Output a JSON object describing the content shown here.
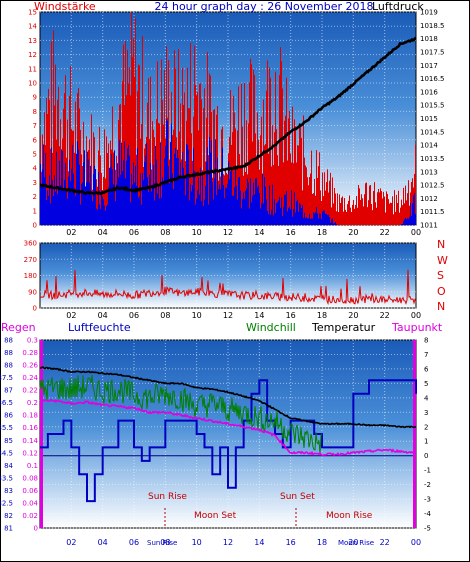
{
  "title": "24 hour graph day : 26 November 2018",
  "colors": {
    "windspeed": "#e00000",
    "wind_gust_bars": "#0000e0",
    "pressure": "#000000",
    "winddir": "#e00000",
    "rain": "#0000e0",
    "humidity": "#0000c0",
    "windchill": "#008000",
    "temperature": "#000000",
    "dewpoint": "#e000e0",
    "events": "#c00000"
  },
  "panel1": {
    "left_label": "Windstärke",
    "right_label": "Luftdruck",
    "left_ticks": [
      "0",
      "1",
      "2",
      "3",
      "4",
      "5",
      "6",
      "7",
      "8",
      "9",
      "10",
      "11",
      "12",
      "13",
      "14",
      "15"
    ],
    "right_ticks": [
      "1011",
      "1011.5",
      "1012",
      "1012.5",
      "1013",
      "1013.5",
      "1014",
      "1014.5",
      "1015",
      "1015.5",
      "1016",
      "1016.5",
      "1017",
      "1017.5",
      "1018",
      "1018.5",
      "1019"
    ],
    "x_ticks": [
      "02",
      "04",
      "06",
      "08",
      "10",
      "12",
      "14",
      "16",
      "18",
      "20",
      "22",
      "00"
    ]
  },
  "panel2": {
    "left_ticks": [
      "0",
      "90",
      "180",
      "270",
      "360"
    ],
    "compass": [
      "N",
      "W",
      "S",
      "O",
      "N"
    ],
    "x_ticks": [
      "02",
      "04",
      "06",
      "08",
      "10",
      "12",
      "14",
      "16",
      "18",
      "20",
      "22",
      "00"
    ]
  },
  "panel3": {
    "labels": {
      "rain": "Regen",
      "humidity": "Luftfeuchte",
      "windchill": "Windchill",
      "temperature": "Temperatur",
      "dewpoint": "Taupunkt"
    },
    "humidity_ticks": [
      "81",
      "82",
      "82.5",
      "83",
      "83.5",
      "84",
      "84.5",
      "85",
      "85.5",
      "86",
      "86.5",
      "87",
      "87.5",
      "88"
    ],
    "rain_ticks": [
      "0",
      "0.02",
      "0.04",
      "0.06",
      "0.08",
      "0.1",
      "0.12",
      "0.14",
      "0.16",
      "0.18",
      "0.2",
      "0.22",
      "0.24",
      "0.26",
      "0.28",
      "0.3"
    ],
    "temp_ticks": [
      "-5",
      "-4",
      "-3",
      "-2",
      "-1",
      "0",
      "1",
      "2",
      "3",
      "4",
      "5",
      "6",
      "7",
      "8"
    ],
    "x_ticks": [
      "02",
      "04",
      "06",
      "08",
      "10",
      "12",
      "14",
      "16",
      "18",
      "20",
      "22",
      "00"
    ],
    "events": {
      "sun_rise": "Sun Rise",
      "sun_set": "Sun Set",
      "moon_set": "Moon Set",
      "moon_rise": "Moon Rise"
    },
    "bottom_overlays": [
      "Sun Rise",
      "Sun Set",
      "Moon Rise"
    ]
  },
  "chart_data": [
    {
      "type": "bar",
      "panel": "wind_pressure",
      "title": "24 hour graph day : 26 November 2018",
      "xlabel": "",
      "ylabel": "Windstärke",
      "y2label": "Luftdruck",
      "ylim": [
        0,
        15
      ],
      "y2lim": [
        1011,
        1019
      ],
      "x_range_hours": [
        0,
        24
      ],
      "grid": true,
      "series": [
        {
          "name": "Windstärke",
          "kind": "bar",
          "description_points": [
            [
              0,
              8
            ],
            [
              1,
              12
            ],
            [
              2,
              9
            ],
            [
              3,
              7
            ],
            [
              4,
              6
            ],
            [
              5,
              10
            ],
            [
              6,
              13
            ],
            [
              7,
              9
            ],
            [
              8,
              11
            ],
            [
              9,
              10
            ],
            [
              10,
              12
            ],
            [
              11,
              9
            ],
            [
              12,
              8
            ],
            [
              13,
              10
            ],
            [
              14,
              9
            ],
            [
              15,
              12
            ],
            [
              16,
              7
            ],
            [
              17,
              6
            ],
            [
              18,
              4
            ],
            [
              19,
              2
            ],
            [
              20,
              2
            ],
            [
              21,
              3
            ],
            [
              22,
              2
            ],
            [
              23,
              2
            ],
            [
              24,
              5
            ]
          ]
        },
        {
          "name": "Windstärke (blue)",
          "kind": "bar",
          "description_points": [
            [
              0,
              5
            ],
            [
              1,
              4
            ],
            [
              2,
              5
            ],
            [
              3,
              4
            ],
            [
              4,
              3
            ],
            [
              5,
              5
            ],
            [
              6,
              4
            ],
            [
              7,
              5
            ],
            [
              8,
              6
            ],
            [
              9,
              5
            ],
            [
              10,
              4
            ],
            [
              11,
              5
            ],
            [
              12,
              4
            ],
            [
              13,
              3
            ],
            [
              14,
              3
            ],
            [
              15,
              2
            ],
            [
              16,
              2
            ],
            [
              17,
              1
            ],
            [
              18,
              1
            ],
            [
              19,
              0
            ],
            [
              20,
              0
            ],
            [
              21,
              0
            ],
            [
              22,
              0
            ],
            [
              23,
              0
            ],
            [
              24,
              2
            ]
          ]
        },
        {
          "name": "Luftdruck",
          "kind": "line",
          "points": [
            [
              0,
              1012.5
            ],
            [
              1,
              1012.4
            ],
            [
              2,
              1012.3
            ],
            [
              3,
              1012.2
            ],
            [
              4,
              1012.2
            ],
            [
              5,
              1012.4
            ],
            [
              6,
              1012.3
            ],
            [
              7,
              1012.4
            ],
            [
              8,
              1012.6
            ],
            [
              9,
              1012.8
            ],
            [
              10,
              1012.9
            ],
            [
              11,
              1013.0
            ],
            [
              12,
              1013.1
            ],
            [
              13,
              1013.2
            ],
            [
              14,
              1013.6
            ],
            [
              15,
              1014.0
            ],
            [
              16,
              1014.5
            ],
            [
              17,
              1014.9
            ],
            [
              18,
              1015.4
            ],
            [
              19,
              1015.8
            ],
            [
              20,
              1016.3
            ],
            [
              21,
              1016.8
            ],
            [
              22,
              1017.3
            ],
            [
              23,
              1017.8
            ],
            [
              24,
              1018.0
            ]
          ]
        }
      ]
    },
    {
      "type": "line",
      "panel": "wind_direction",
      "xlabel": "",
      "ylabel": "",
      "ylim": [
        0,
        360
      ],
      "x_range_hours": [
        0,
        24
      ],
      "grid": true,
      "series": [
        {
          "name": "",
          "points": [
            [
              0,
              75
            ],
            [
              1,
              70
            ],
            [
              2,
              80
            ],
            [
              3,
              85
            ],
            [
              4,
              75
            ],
            [
              5,
              80
            ],
            [
              6,
              70
            ],
            [
              7,
              85
            ],
            [
              8,
              95
            ],
            [
              9,
              80
            ],
            [
              10,
              90
            ],
            [
              11,
              80
            ],
            [
              12,
              75
            ],
            [
              13,
              70
            ],
            [
              14,
              65
            ],
            [
              15,
              65
            ],
            [
              16,
              60
            ],
            [
              17,
              55
            ],
            [
              18,
              50
            ],
            [
              19,
              45
            ],
            [
              20,
              45
            ],
            [
              21,
              50
            ],
            [
              22,
              45
            ],
            [
              23,
              45
            ],
            [
              24,
              50
            ]
          ]
        }
      ]
    },
    {
      "type": "line",
      "panel": "temperature_humidity",
      "xlabel": "",
      "ylabel": "Luftfeuchte",
      "y2label": "Temperatur",
      "ylim": [
        81,
        88
      ],
      "y2lim": [
        -5,
        8
      ],
      "rain_lim": [
        0,
        0.3
      ],
      "x_range_hours": [
        0,
        24
      ],
      "grid": true,
      "series": [
        {
          "name": "Temperatur",
          "axis": "temp",
          "points": [
            [
              0,
              6.1
            ],
            [
              1,
              6.0
            ],
            [
              2,
              5.8
            ],
            [
              3,
              5.8
            ],
            [
              4,
              5.7
            ],
            [
              5,
              5.6
            ],
            [
              6,
              5.4
            ],
            [
              7,
              5.2
            ],
            [
              8,
              5.0
            ],
            [
              9,
              5.0
            ],
            [
              10,
              4.7
            ],
            [
              11,
              4.6
            ],
            [
              12,
              4.4
            ],
            [
              13,
              4.1
            ],
            [
              14,
              3.8
            ],
            [
              15,
              3.2
            ],
            [
              16,
              2.6
            ],
            [
              17,
              2.4
            ],
            [
              18,
              2.2
            ],
            [
              19,
              2.2
            ],
            [
              20,
              2.2
            ],
            [
              21,
              2.1
            ],
            [
              22,
              2.1
            ],
            [
              23,
              2.0
            ],
            [
              24,
              2.0
            ]
          ]
        },
        {
          "name": "Windchill",
          "axis": "temp",
          "points": [
            [
              0,
              4.5
            ],
            [
              1,
              4.7
            ],
            [
              2,
              4.6
            ],
            [
              3,
              4.8
            ],
            [
              4,
              4.5
            ],
            [
              5,
              4.6
            ],
            [
              6,
              4.2
            ],
            [
              7,
              4.0
            ],
            [
              8,
              4.3
            ],
            [
              9,
              4.0
            ],
            [
              10,
              3.4
            ],
            [
              11,
              3.6
            ],
            [
              12,
              3.2
            ],
            [
              13,
              3.0
            ],
            [
              14,
              2.6
            ],
            [
              15,
              2.4
            ],
            [
              16,
              1.6
            ],
            [
              17,
              1.2
            ],
            [
              18,
              0.8
            ]
          ]
        },
        {
          "name": "Taupunkt",
          "axis": "temp",
          "points": [
            [
              0,
              3.8
            ],
            [
              1,
              3.8
            ],
            [
              2,
              3.6
            ],
            [
              3,
              3.7
            ],
            [
              4,
              3.5
            ],
            [
              5,
              3.4
            ],
            [
              6,
              3.3
            ],
            [
              7,
              3.0
            ],
            [
              8,
              3.0
            ],
            [
              9,
              2.8
            ],
            [
              10,
              2.6
            ],
            [
              11,
              2.4
            ],
            [
              12,
              2.2
            ],
            [
              13,
              2.0
            ],
            [
              14,
              1.8
            ],
            [
              15,
              1.4
            ],
            [
              16,
              0.2
            ],
            [
              17,
              0.2
            ],
            [
              18,
              0.1
            ],
            [
              19,
              0.1
            ],
            [
              20,
              0.2
            ],
            [
              21,
              0.3
            ],
            [
              22,
              0.4
            ],
            [
              23,
              0.3
            ],
            [
              24,
              0.2
            ]
          ]
        },
        {
          "name": "Luftfeuchte",
          "axis": "humidity",
          "points": [
            [
              0,
              84
            ],
            [
              0.5,
              84.5
            ],
            [
              1,
              84.5
            ],
            [
              1.5,
              85
            ],
            [
              2,
              84
            ],
            [
              2.5,
              83
            ],
            [
              3,
              82
            ],
            [
              3.5,
              83
            ],
            [
              4,
              84
            ],
            [
              5,
              85
            ],
            [
              6,
              84
            ],
            [
              6.5,
              83.5
            ],
            [
              7,
              84
            ],
            [
              8,
              85
            ],
            [
              9,
              85
            ],
            [
              10,
              84.5
            ],
            [
              10.5,
              84
            ],
            [
              11,
              83
            ],
            [
              11.5,
              84
            ],
            [
              12,
              82.5
            ],
            [
              12.5,
              84
            ],
            [
              13,
              85
            ],
            [
              13.5,
              86
            ],
            [
              14,
              86.5
            ],
            [
              14.5,
              85
            ],
            [
              15,
              84.5
            ],
            [
              15.5,
              84
            ],
            [
              16,
              85
            ],
            [
              17,
              85
            ],
            [
              17.5,
              84.5
            ],
            [
              18,
              84
            ],
            [
              19,
              84
            ],
            [
              20,
              86
            ],
            [
              21,
              86.5
            ],
            [
              22,
              86.5
            ],
            [
              23,
              86.5
            ],
            [
              24,
              86
            ]
          ]
        }
      ]
    }
  ]
}
